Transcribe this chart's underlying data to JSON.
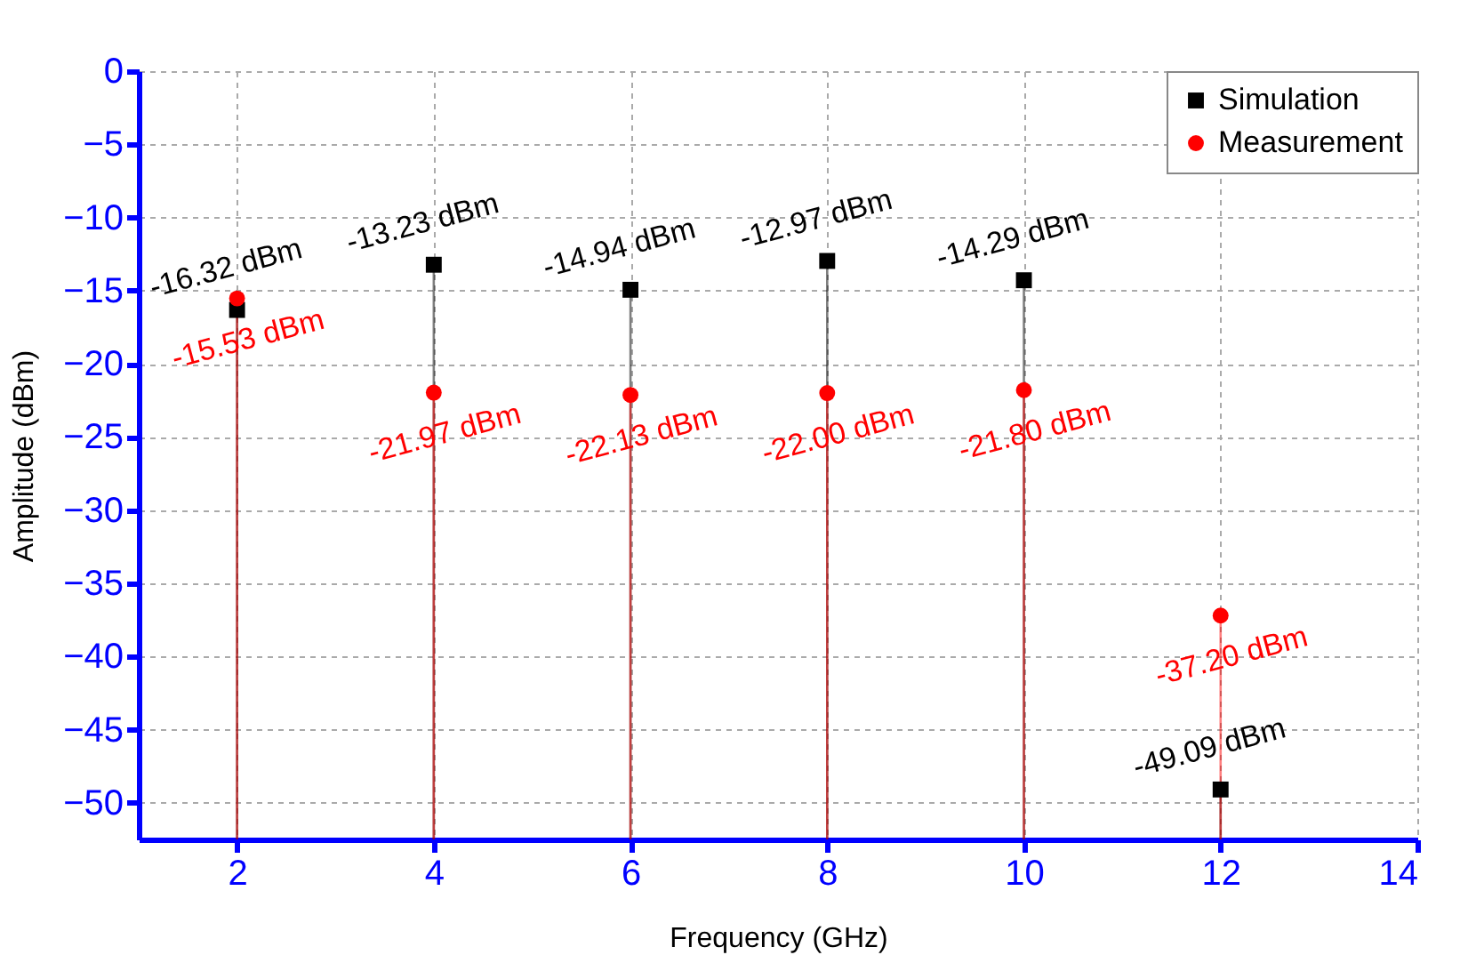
{
  "chart_data": {
    "type": "lollipop",
    "xlabel": "Frequency (GHz)",
    "ylabel": "Amplitude (dBm)",
    "x": [
      2,
      4,
      6,
      8,
      10,
      12
    ],
    "series": [
      {
        "name": "Simulation",
        "color": "#000000",
        "marker": "square",
        "values": [
          -16.32,
          -13.23,
          -14.94,
          -12.97,
          -14.29,
          -49.09
        ],
        "value_labels": [
          "-16.32 dBm",
          "-13.23 dBm",
          "-14.94 dBm",
          "-12.97 dBm",
          "-14.29 dBm",
          "-49.09 dBm"
        ]
      },
      {
        "name": "Measurement",
        "color": "#ff0000",
        "marker": "circle",
        "values": [
          -15.53,
          -21.97,
          -22.13,
          -22.0,
          -21.8,
          -37.2
        ],
        "value_labels": [
          "-15.53 dBm",
          "-21.97 dBm",
          "-22.13 dBm",
          "-22.00 dBm",
          "-21.80 dBm",
          "-37.20 dBm"
        ]
      }
    ],
    "xlim": [
      1,
      14
    ],
    "xticks": [
      2,
      4,
      6,
      8,
      10,
      12,
      14
    ],
    "ylim": [
      -52.5,
      0
    ],
    "yticks": [
      0,
      -5,
      -10,
      -15,
      -20,
      -25,
      -30,
      -35,
      -40,
      -45,
      -50
    ],
    "grid": true,
    "legend": "top right"
  }
}
